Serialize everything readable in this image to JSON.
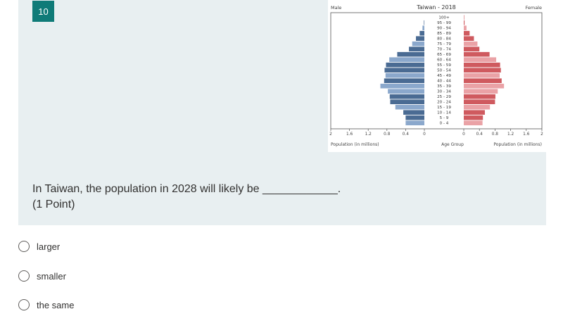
{
  "question": {
    "number": "10",
    "text": "In Taiwan, the population in 2028 will likely be ____________.",
    "points": "(1 Point)"
  },
  "options": [
    {
      "label": "larger",
      "selected": false
    },
    {
      "label": "smaller",
      "selected": false
    },
    {
      "label": "the same",
      "selected": false
    }
  ],
  "colors": {
    "accent": "#0f7b78",
    "card_bg": "#e8eff1",
    "male_dark": "#4a6b93",
    "male_light": "#8ba8cc",
    "female_dark": "#cf5a5f",
    "female_light": "#eaa2a6"
  },
  "chart_data": {
    "type": "bar",
    "title": "Taiwan - 2018",
    "left_label": "Male",
    "right_label": "Female",
    "xlabel_left": "Population (in millions)",
    "xlabel_center": "Age Group",
    "xlabel_right": "Population (in millions)",
    "xlim": [
      0,
      2
    ],
    "left_ticks": [
      "2",
      "1.6",
      "1.2",
      "0.8",
      "0.4",
      "0"
    ],
    "right_ticks": [
      "0",
      "0.4",
      "0.8",
      "1.2",
      "1.6",
      "2"
    ],
    "tick_values": [
      2,
      1.6,
      1.2,
      0.8,
      0.4,
      0
    ],
    "right_tick_values": [
      0,
      0.4,
      0.8,
      1.2,
      1.6,
      2
    ],
    "categories": [
      "100+",
      "95 - 99",
      "90 - 94",
      "85 - 89",
      "80 - 84",
      "75 - 79",
      "70 - 74",
      "65 - 69",
      "60 - 64",
      "55 - 59",
      "50 - 54",
      "45 - 49",
      "40 - 44",
      "35 - 39",
      "30 - 34",
      "25 - 29",
      "20 - 24",
      "15 - 19",
      "10 - 14",
      "5 - 9",
      "0 - 4"
    ],
    "series": [
      {
        "name": "Male",
        "values": [
          0.0,
          0.01,
          0.04,
          0.1,
          0.18,
          0.26,
          0.33,
          0.58,
          0.75,
          0.82,
          0.85,
          0.83,
          0.86,
          0.94,
          0.78,
          0.74,
          0.73,
          0.62,
          0.45,
          0.4,
          0.4
        ]
      },
      {
        "name": "Female",
        "values": [
          0.01,
          0.02,
          0.07,
          0.15,
          0.26,
          0.35,
          0.4,
          0.66,
          0.83,
          0.93,
          0.95,
          0.92,
          0.97,
          1.03,
          0.87,
          0.81,
          0.8,
          0.67,
          0.54,
          0.49,
          0.48
        ]
      }
    ]
  }
}
